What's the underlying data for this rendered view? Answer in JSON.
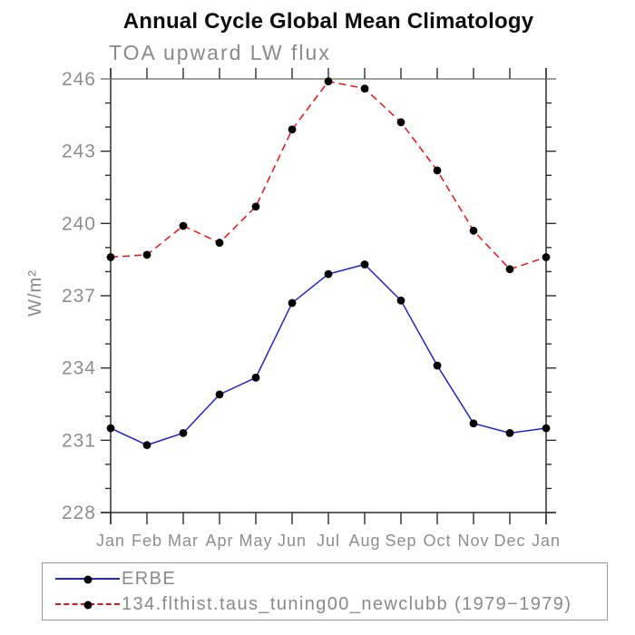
{
  "chart_data": {
    "type": "line",
    "title": "Annual Cycle Global Mean Climatology",
    "subtitle": "TOA upward LW flux",
    "ylabel": "W/m²",
    "xlabel": "",
    "categories": [
      "Jan",
      "Feb",
      "Mar",
      "Apr",
      "May",
      "Jun",
      "Jul",
      "Aug",
      "Sep",
      "Oct",
      "Nov",
      "Dec",
      "Jan"
    ],
    "series": [
      {
        "name": "ERBE",
        "color": "#2323cf",
        "line_style": "solid",
        "values": [
          231.5,
          230.8,
          231.3,
          232.9,
          233.6,
          236.7,
          237.9,
          238.3,
          236.8,
          234.1,
          231.7,
          231.3,
          231.5
        ]
      },
      {
        "name": "134.flthist.taus_tuning00_newclubb (1979−1979)",
        "color": "#ee1111",
        "line_style": "dashed",
        "values": [
          238.6,
          238.7,
          239.9,
          239.2,
          240.7,
          243.9,
          245.9,
          245.6,
          244.2,
          242.2,
          239.7,
          238.1,
          238.6
        ]
      }
    ],
    "ylim": [
      228,
      246
    ],
    "ytick_labels": [
      "228",
      "231",
      "234",
      "237",
      "240",
      "243",
      "246"
    ],
    "ytick_minor_step": 1,
    "grid": "off",
    "legend_position": "bottom",
    "marker_color": "#000000",
    "axis_color": "#2e2e2e",
    "frame_top_color": "#949494",
    "tick_label_color": "#8e8e8e"
  }
}
